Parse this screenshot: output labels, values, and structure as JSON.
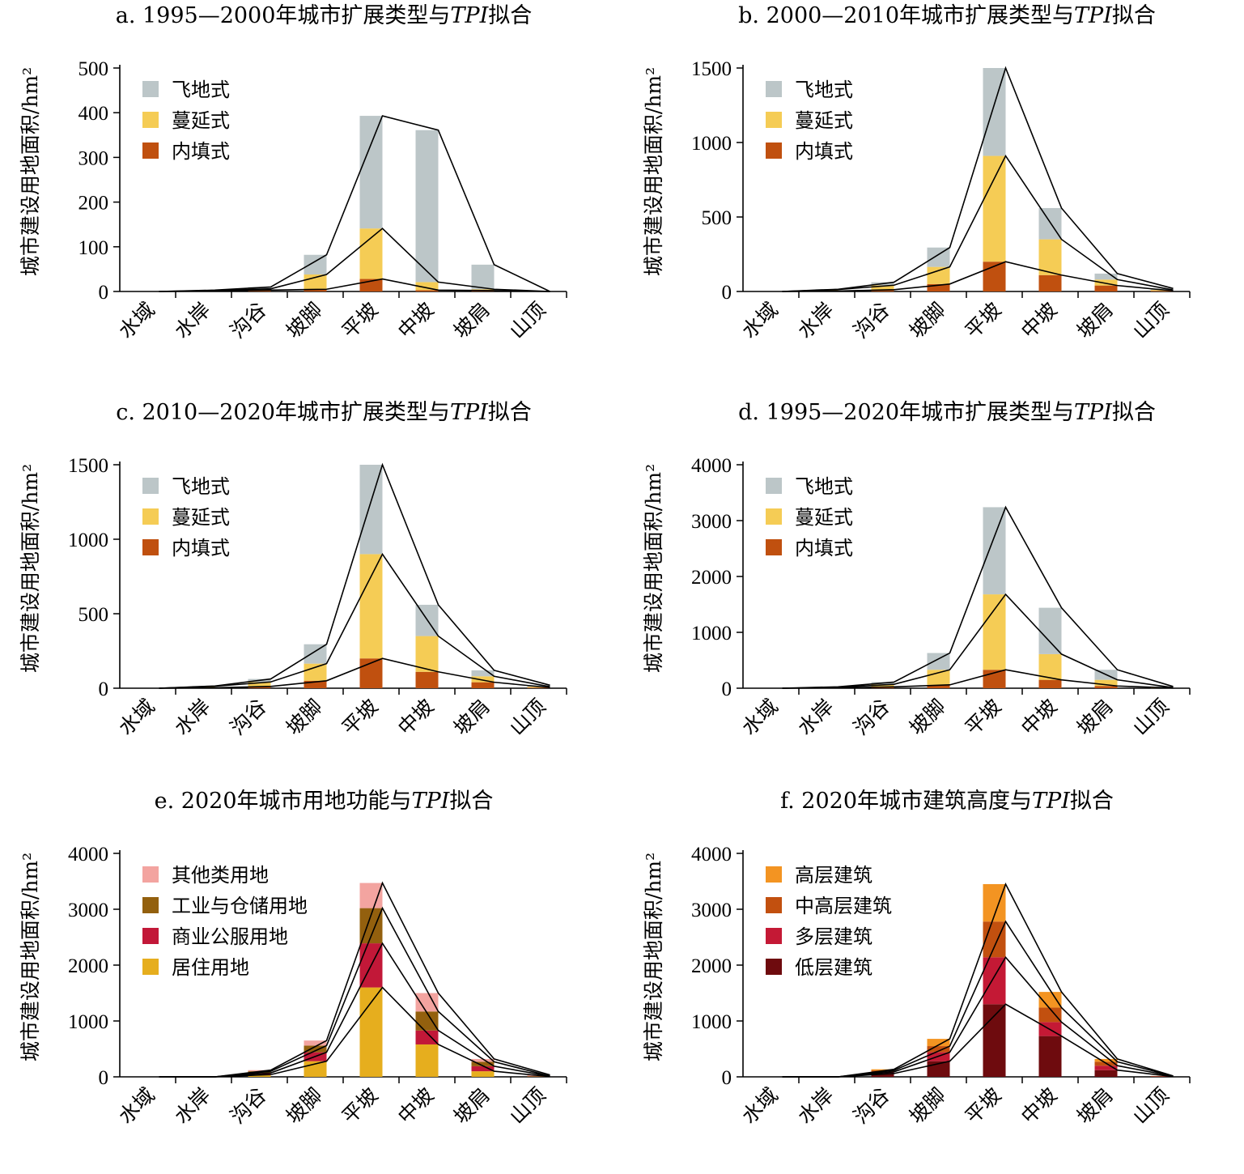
{
  "y_label": "城市建设用地面积/hm²",
  "categories": [
    "水域",
    "水岸",
    "沟谷",
    "坡脚",
    "平坡",
    "中坡",
    "坡肩",
    "山顶"
  ],
  "chart_data": [
    {
      "type": "bar",
      "title": "a. 1995—2000年城市扩展类型与TPI拟合",
      "title_parts": [
        {
          "t": "a. 1995—2000年城市扩展类型与"
        },
        {
          "t": "TPI",
          "i": true
        },
        {
          "t": "拟合"
        }
      ],
      "ylabel": "城市建设用地面积/hm²",
      "ylim": [
        0,
        500
      ],
      "yticks": [
        0,
        100,
        200,
        300,
        400,
        500
      ],
      "categories": [
        "水域",
        "水岸",
        "沟谷",
        "坡脚",
        "平坡",
        "中坡",
        "坡肩",
        "山顶"
      ],
      "stacked": true,
      "legend_position": "top-left",
      "series": [
        {
          "name": "内填式",
          "color": "#C0500F",
          "values": [
            0,
            1,
            3,
            5,
            28,
            3,
            2,
            0
          ]
        },
        {
          "name": "蔓延式",
          "color": "#F5CC55",
          "values": [
            0,
            1,
            3,
            33,
            113,
            18,
            3,
            0
          ]
        },
        {
          "name": "飞地式",
          "color": "#BCC6C8",
          "values": [
            0,
            1,
            4,
            44,
            252,
            340,
            55,
            0
          ]
        }
      ]
    },
    {
      "type": "bar",
      "title": "b. 2000—2010年城市扩展类型与TPI拟合",
      "title_parts": [
        {
          "t": "b. 2000—2010年城市扩展类型与"
        },
        {
          "t": "TPI",
          "i": true
        },
        {
          "t": "拟合"
        }
      ],
      "ylabel": "城市建设用地面积/hm²",
      "ylim": [
        0,
        1500
      ],
      "yticks": [
        0,
        500,
        1000,
        1500
      ],
      "categories": [
        "水域",
        "水岸",
        "沟谷",
        "坡脚",
        "平坡",
        "中坡",
        "坡肩",
        "山顶"
      ],
      "stacked": true,
      "legend_position": "top-left",
      "series": [
        {
          "name": "内填式",
          "color": "#C0500F",
          "values": [
            0,
            3,
            12,
            50,
            200,
            110,
            40,
            4
          ]
        },
        {
          "name": "蔓延式",
          "color": "#F5CC55",
          "values": [
            0,
            10,
            30,
            115,
            710,
            240,
            40,
            6
          ]
        },
        {
          "name": "飞地式",
          "color": "#BCC6C8",
          "values": [
            0,
            2,
            20,
            130,
            590,
            210,
            40,
            10
          ]
        }
      ]
    },
    {
      "type": "bar",
      "title": "c. 2010—2020年城市扩展类型与TPI拟合",
      "title_parts": [
        {
          "t": "c. 2010—2020年城市扩展类型与"
        },
        {
          "t": "TPI",
          "i": true
        },
        {
          "t": "拟合"
        }
      ],
      "ylabel": "城市建设用地面积/hm²",
      "ylim": [
        0,
        1500
      ],
      "yticks": [
        0,
        500,
        1000,
        1500
      ],
      "categories": [
        "水域",
        "水岸",
        "沟谷",
        "坡脚",
        "平坡",
        "中坡",
        "坡肩",
        "山顶"
      ],
      "stacked": true,
      "legend_position": "top-left",
      "series": [
        {
          "name": "内填式",
          "color": "#C0500F",
          "values": [
            0,
            3,
            12,
            50,
            200,
            110,
            40,
            4
          ]
        },
        {
          "name": "蔓延式",
          "color": "#F5CC55",
          "values": [
            0,
            10,
            30,
            115,
            700,
            240,
            40,
            6
          ]
        },
        {
          "name": "飞地式",
          "color": "#BCC6C8",
          "values": [
            0,
            2,
            20,
            130,
            600,
            210,
            40,
            10
          ]
        }
      ]
    },
    {
      "type": "bar",
      "title": "d. 1995—2020年城市扩展类型与TPI拟合",
      "title_parts": [
        {
          "t": "d. 1995—2020年城市扩展类型与"
        },
        {
          "t": "TPI",
          "i": true
        },
        {
          "t": "拟合"
        }
      ],
      "ylabel": "城市建设用地面积/hm²",
      "ylim": [
        0,
        4000
      ],
      "yticks": [
        0,
        1000,
        2000,
        3000,
        4000
      ],
      "categories": [
        "水域",
        "水岸",
        "沟谷",
        "坡脚",
        "平坡",
        "中坡",
        "坡肩",
        "山顶"
      ],
      "stacked": true,
      "legend_position": "top-left",
      "series": [
        {
          "name": "内填式",
          "color": "#C0500F",
          "values": [
            0,
            5,
            25,
            60,
            330,
            150,
            40,
            3
          ]
        },
        {
          "name": "蔓延式",
          "color": "#F5CC55",
          "values": [
            0,
            10,
            45,
            270,
            1350,
            460,
            110,
            7
          ]
        },
        {
          "name": "飞地式",
          "color": "#BCC6C8",
          "values": [
            0,
            10,
            40,
            300,
            1560,
            830,
            180,
            20
          ]
        }
      ]
    },
    {
      "type": "bar",
      "title": "e. 2020年城市用地功能与TPI拟合",
      "title_parts": [
        {
          "t": "e. 2020年城市用地功能与"
        },
        {
          "t": "TPI",
          "i": true
        },
        {
          "t": "拟合"
        }
      ],
      "ylabel": "城市建设用地面积/hm²",
      "ylim": [
        0,
        4000
      ],
      "yticks": [
        0,
        1000,
        2000,
        3000,
        4000
      ],
      "categories": [
        "水域",
        "水岸",
        "沟谷",
        "坡脚",
        "平坡",
        "中坡",
        "坡肩",
        "山顶"
      ],
      "stacked": true,
      "legend_position": "top-left",
      "series": [
        {
          "name": "居住用地",
          "color": "#E6AE1E",
          "values": [
            0,
            0,
            40,
            280,
            1600,
            580,
            100,
            5
          ]
        },
        {
          "name": "商业公服用地",
          "color": "#C21838",
          "values": [
            0,
            0,
            30,
            160,
            790,
            250,
            90,
            5
          ]
        },
        {
          "name": "工业与仓储用地",
          "color": "#93600E",
          "values": [
            0,
            0,
            30,
            120,
            630,
            340,
            80,
            5
          ]
        },
        {
          "name": "其他类用地",
          "color": "#F3A4A0",
          "values": [
            0,
            0,
            20,
            90,
            450,
            330,
            50,
            20
          ]
        }
      ]
    },
    {
      "type": "bar",
      "title": "f. 2020年城市建筑高度与TPI拟合",
      "title_parts": [
        {
          "t": "f. 2020年城市建筑高度与"
        },
        {
          "t": "TPI",
          "i": true
        },
        {
          "t": "拟合"
        }
      ],
      "ylabel": "城市建设用地面积/hm²",
      "ylim": [
        0,
        4000
      ],
      "yticks": [
        0,
        1000,
        2000,
        3000,
        4000
      ],
      "categories": [
        "水域",
        "水岸",
        "沟谷",
        "坡脚",
        "平坡",
        "中坡",
        "坡肩",
        "山顶"
      ],
      "stacked": true,
      "legend_position": "top-left",
      "series": [
        {
          "name": "低层建筑",
          "color": "#6E0B0E",
          "values": [
            0,
            0,
            60,
            280,
            1300,
            730,
            120,
            5
          ]
        },
        {
          "name": "多层建筑",
          "color": "#C41935",
          "values": [
            0,
            0,
            30,
            160,
            840,
            250,
            80,
            4
          ]
        },
        {
          "name": "中高层建筑",
          "color": "#C2500F",
          "values": [
            0,
            0,
            25,
            110,
            640,
            260,
            70,
            4
          ]
        },
        {
          "name": "高层建筑",
          "color": "#F39422",
          "values": [
            0,
            0,
            20,
            130,
            670,
            280,
            50,
            3
          ]
        }
      ]
    }
  ]
}
